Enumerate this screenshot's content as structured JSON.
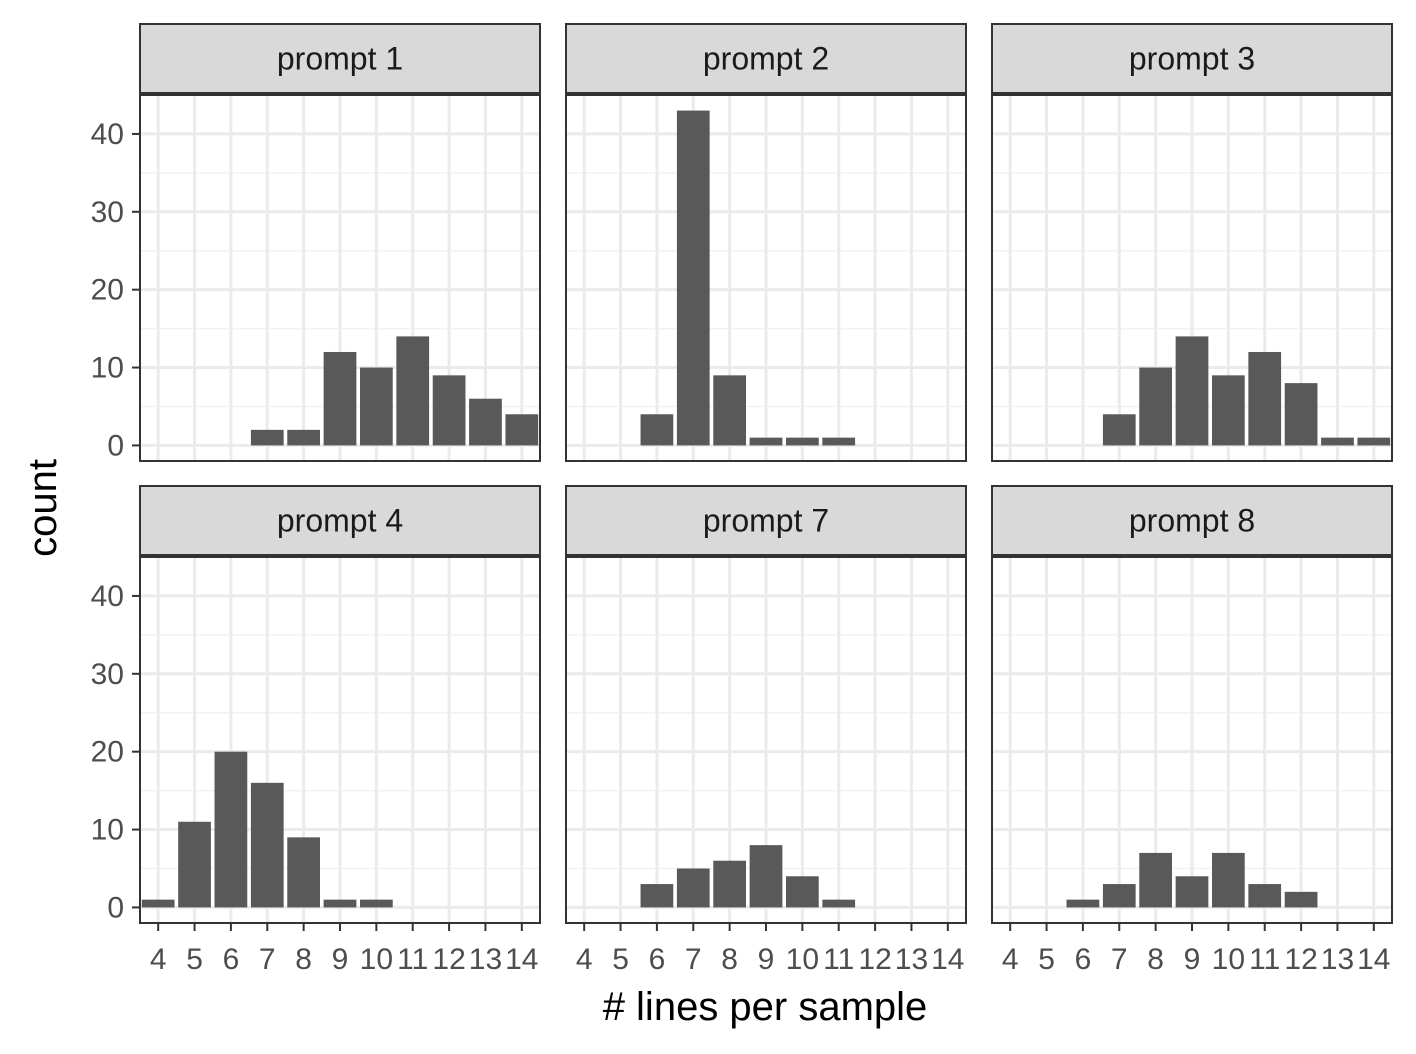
{
  "chart_data": {
    "type": "bar",
    "xlabel": "# lines per sample",
    "ylabel": "count",
    "categories": [
      4,
      5,
      6,
      7,
      8,
      9,
      10,
      11,
      12,
      13,
      14
    ],
    "x_tick_labels": [
      "4",
      "5",
      "6",
      "7",
      "8",
      "9",
      "10",
      "11",
      "12",
      "13",
      "14"
    ],
    "y_ticks": [
      0,
      10,
      20,
      30,
      40
    ],
    "ylim": [
      -2,
      45
    ],
    "xlim": [
      3.5,
      14.5
    ],
    "grid": true,
    "facets": [
      {
        "label": "prompt 1",
        "values": [
          0,
          0,
          0,
          2,
          2,
          12,
          10,
          14,
          9,
          6,
          4
        ]
      },
      {
        "label": "prompt 2",
        "values": [
          0,
          0,
          4,
          43,
          9,
          1,
          1,
          1,
          0,
          0,
          0
        ]
      },
      {
        "label": "prompt 3",
        "values": [
          0,
          0,
          0,
          4,
          10,
          14,
          9,
          12,
          8,
          1,
          1
        ]
      },
      {
        "label": "prompt 4",
        "values": [
          1,
          11,
          20,
          16,
          9,
          1,
          1,
          0,
          0,
          0,
          0
        ]
      },
      {
        "label": "prompt 7",
        "values": [
          0,
          0,
          3,
          5,
          6,
          8,
          4,
          1,
          0,
          0,
          0
        ]
      },
      {
        "label": "prompt 8",
        "values": [
          0,
          0,
          1,
          3,
          7,
          4,
          7,
          3,
          2,
          0,
          0
        ]
      }
    ],
    "colors": {
      "bar": "#595959",
      "strip_fill": "#d9d9d9",
      "panel_border": "#333333",
      "grid_major": "#ebebeb",
      "grid_minor": "#f2f2f2",
      "tick_text": "#4d4d4d"
    }
  }
}
